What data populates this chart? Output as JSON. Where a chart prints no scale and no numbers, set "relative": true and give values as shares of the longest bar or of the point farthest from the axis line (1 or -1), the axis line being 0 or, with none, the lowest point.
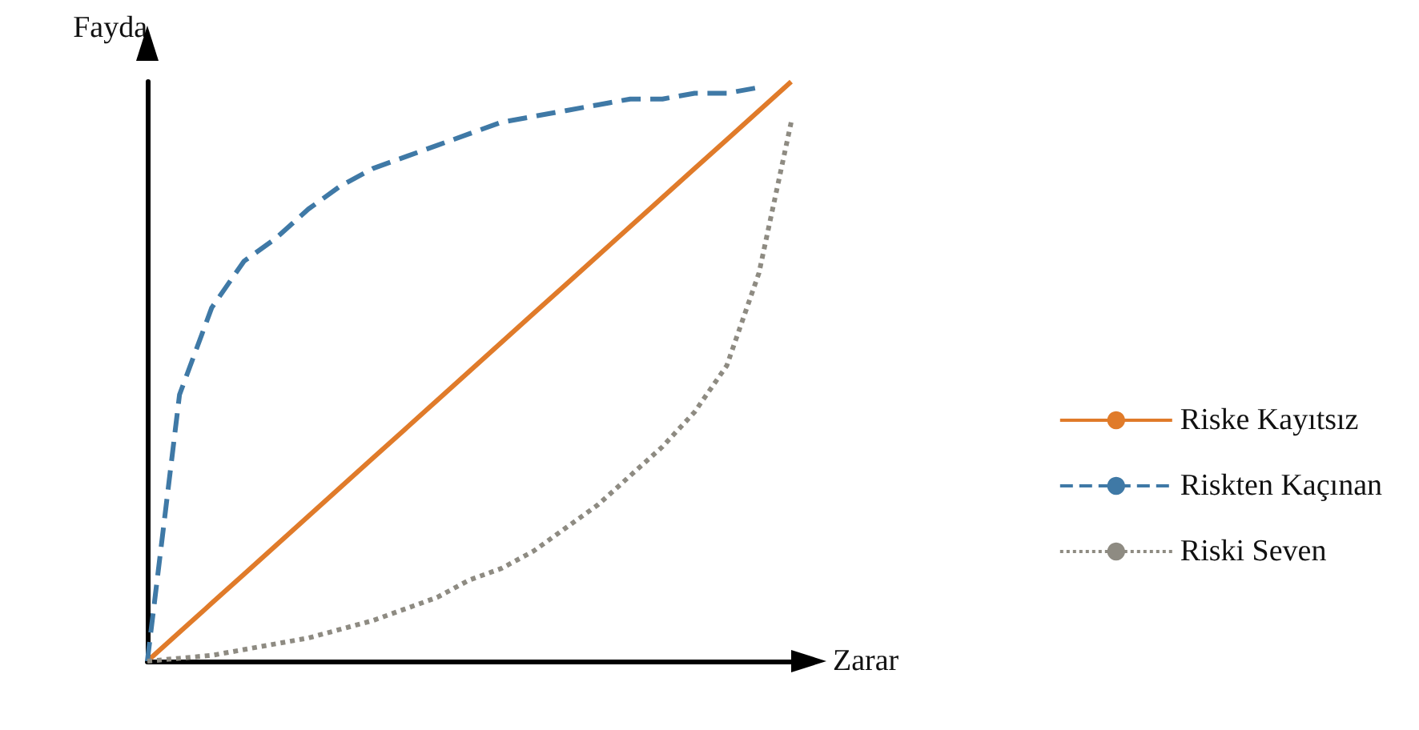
{
  "chart_data": {
    "type": "line",
    "relative": true,
    "xlabel": "Zarar",
    "ylabel": "Fayda",
    "categories": [
      null,
      null,
      null,
      null,
      null,
      null,
      null,
      null,
      null,
      null,
      null,
      null,
      null,
      null,
      null,
      null,
      null,
      null,
      null,
      null,
      null
    ],
    "series": [
      {
        "name": "Riske Kayıtsız",
        "color": "#e07b2a",
        "line_style": "solid",
        "values": [
          0,
          0.05,
          0.1,
          0.15,
          0.2,
          0.25,
          0.3,
          0.35,
          0.4,
          0.45,
          0.5,
          0.55,
          0.6,
          0.65,
          0.7,
          0.75,
          0.8,
          0.85,
          0.9,
          0.95,
          1
        ]
      },
      {
        "name": "Riskten Kaçınan",
        "color": "#3f79a6",
        "line_style": "dashed",
        "values": [
          0,
          0.46,
          0.61,
          0.69,
          0.73,
          0.78,
          0.82,
          0.85,
          0.87,
          0.89,
          0.91,
          0.93,
          0.94,
          0.95,
          0.96,
          0.97,
          0.97,
          0.98,
          0.98,
          0.99,
          null
        ]
      },
      {
        "name": "Riski Seven",
        "color": "#8e8b82",
        "line_style": "dotted",
        "values": [
          0,
          0.005,
          0.01,
          0.02,
          0.03,
          0.04,
          0.055,
          0.07,
          0.09,
          0.11,
          0.14,
          0.16,
          0.19,
          0.23,
          0.27,
          0.32,
          0.37,
          0.43,
          0.51,
          0.67,
          0.93
        ]
      }
    ],
    "legend": "right",
    "grid": false,
    "marker": "none"
  }
}
